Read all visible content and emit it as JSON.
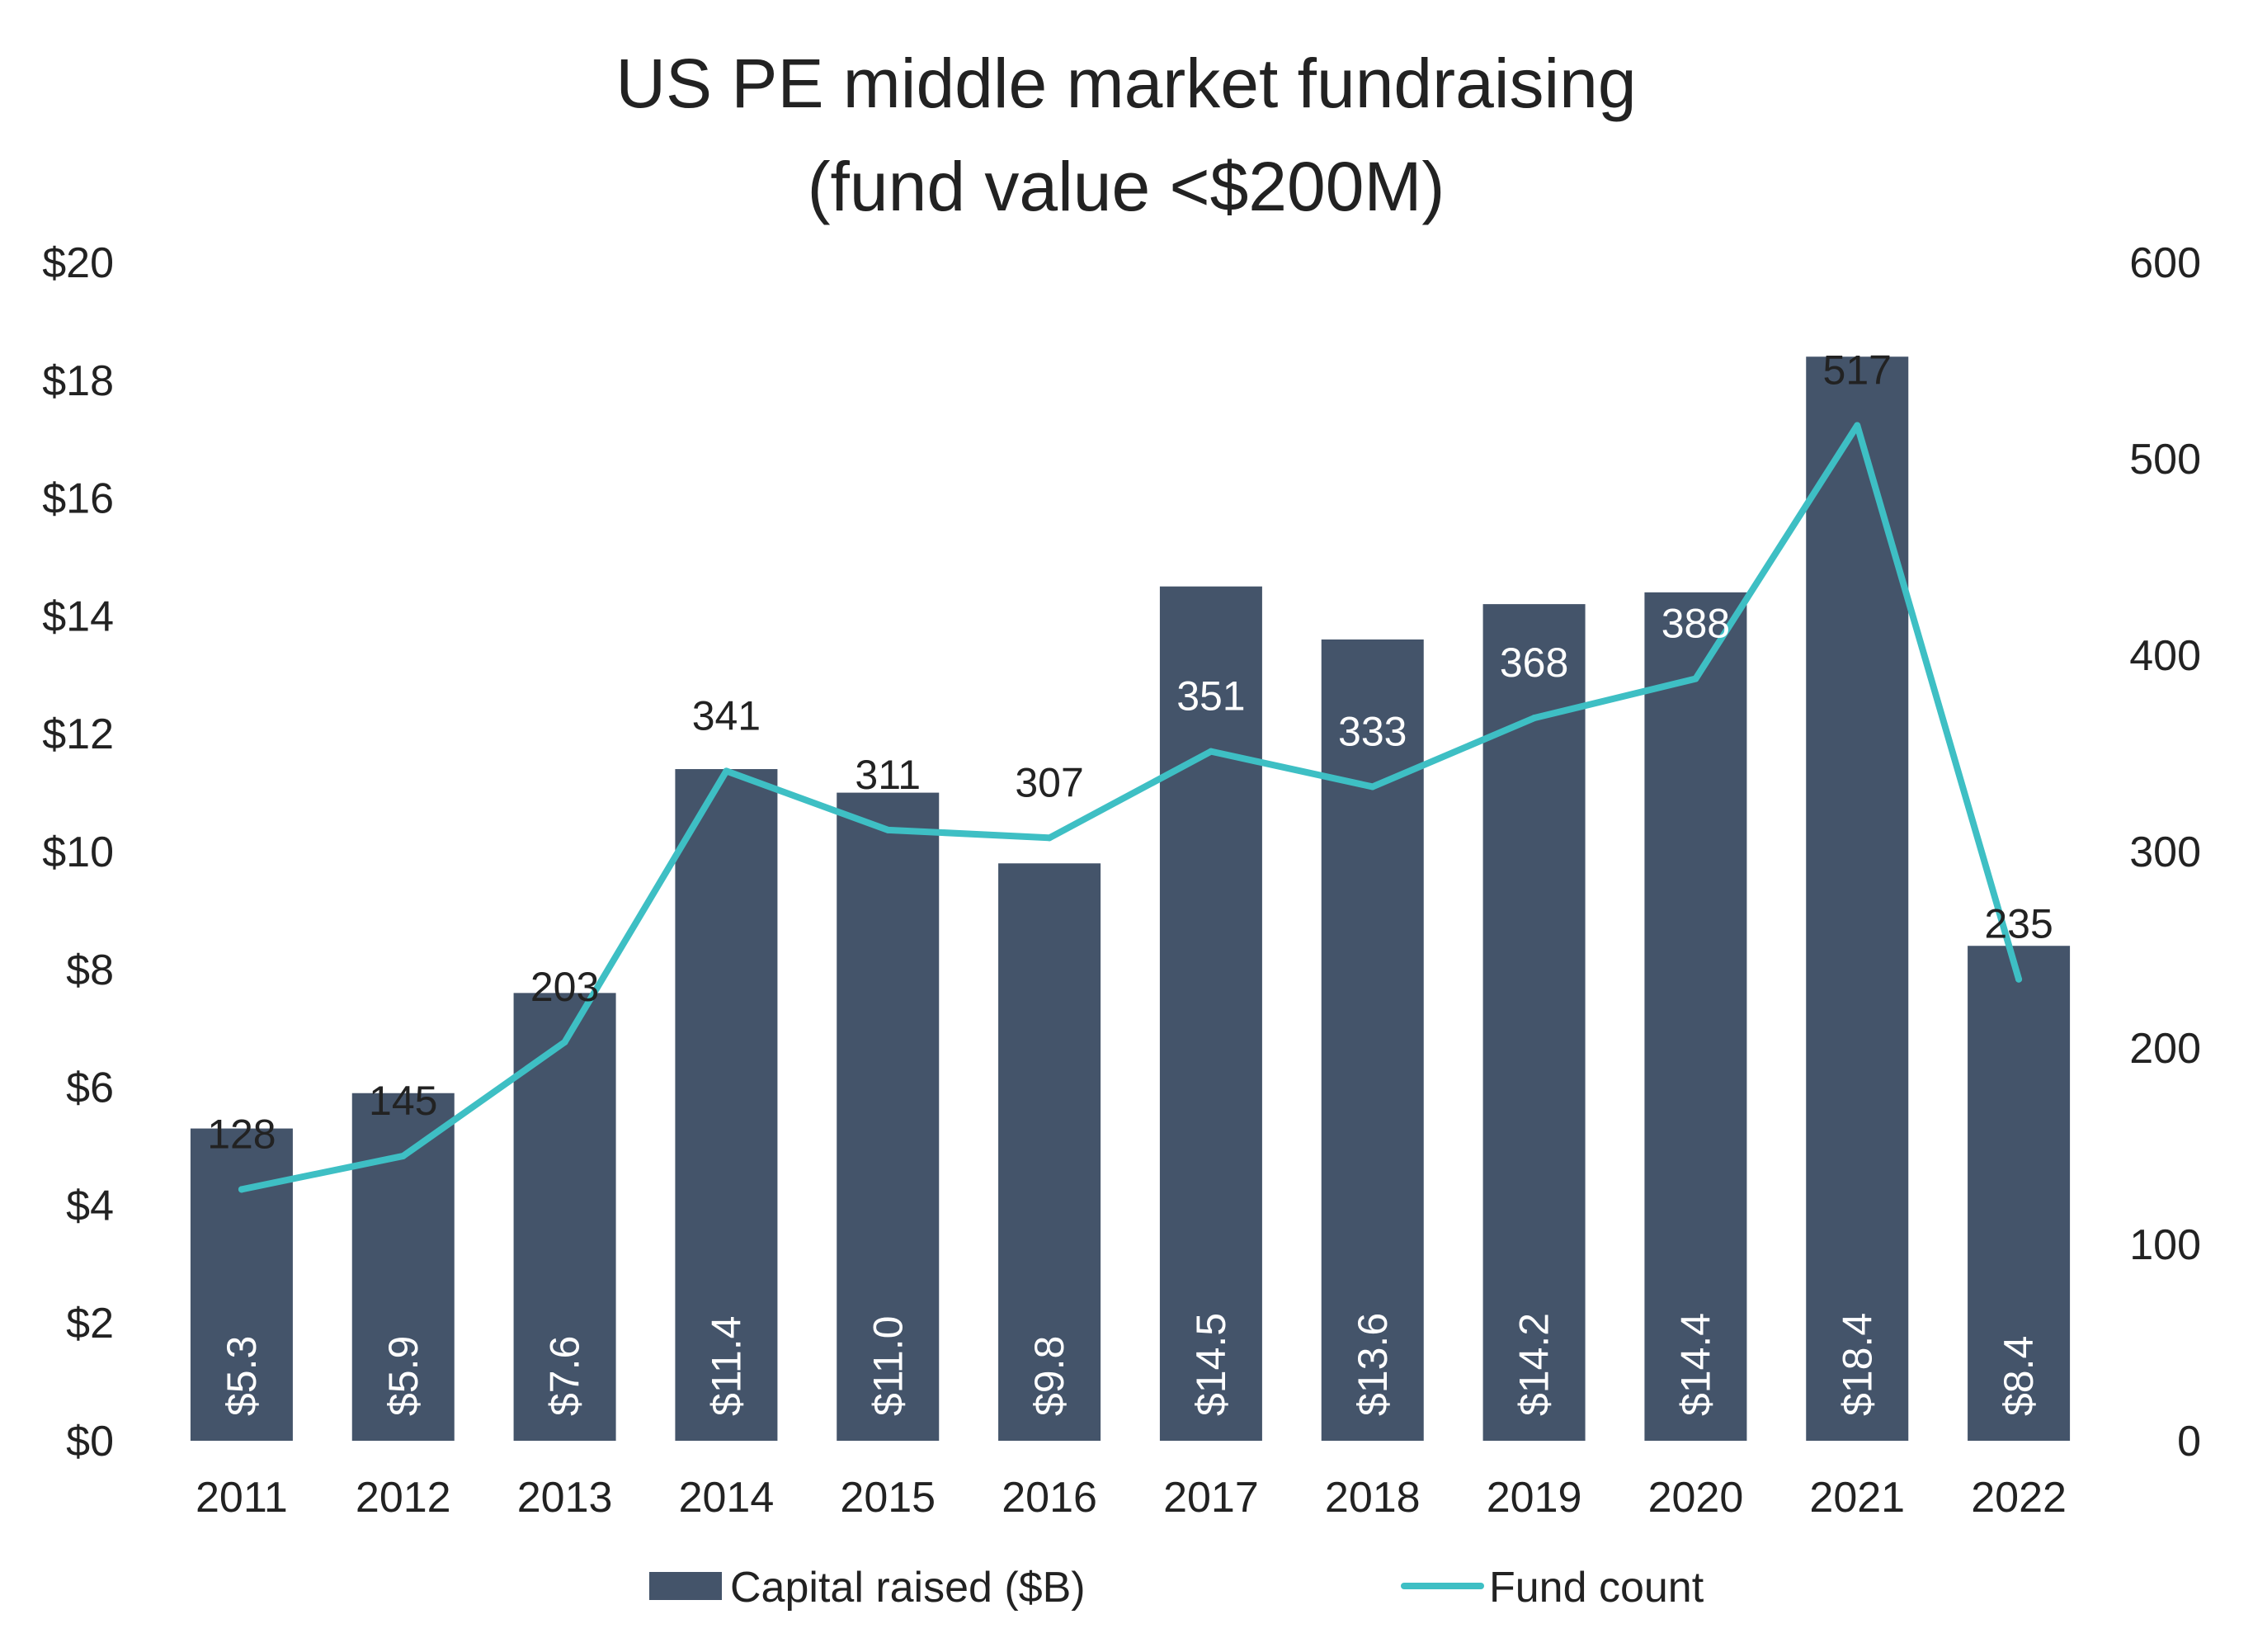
{
  "chart_data": {
    "type": "bar",
    "title": [
      "US PE middle market fundraising",
      "(fund value <$200M)"
    ],
    "categories": [
      "2011",
      "2012",
      "2013",
      "2014",
      "2015",
      "2016",
      "2017",
      "2018",
      "2019",
      "2020",
      "2021",
      "2022"
    ],
    "series": [
      {
        "name": "Capital raised ($B)",
        "type": "bar",
        "axis": "left",
        "color": "#44546a",
        "values": [
          5.3,
          5.9,
          7.6,
          11.4,
          11.0,
          9.8,
          14.5,
          13.6,
          14.2,
          14.4,
          18.4,
          8.4
        ],
        "labels": [
          "$5.3",
          "$5.9",
          "$7.6",
          "$11.4",
          "$11.0",
          "$9.8",
          "$14.5",
          "$13.6",
          "$14.2",
          "$14.4",
          "$18.4",
          "$8.4"
        ]
      },
      {
        "name": "Fund count",
        "type": "line",
        "axis": "right",
        "color": "#3ebfc4",
        "values": [
          128,
          145,
          203,
          341,
          311,
          307,
          351,
          333,
          368,
          388,
          517,
          235
        ],
        "labels": [
          "128",
          "145",
          "203",
          "341",
          "311",
          "307",
          "351",
          "333",
          "368",
          "388",
          "517",
          "235"
        ]
      }
    ],
    "y_left": {
      "lim": [
        0,
        20
      ],
      "ticks": [
        0,
        2,
        4,
        6,
        8,
        10,
        12,
        14,
        16,
        18,
        20
      ],
      "tick_labels": [
        "$0",
        "$2",
        "$4",
        "$6",
        "$8",
        "$10",
        "$12",
        "$14",
        "$16",
        "$18",
        "$20"
      ]
    },
    "y_right": {
      "lim": [
        0,
        600
      ],
      "ticks": [
        0,
        100,
        200,
        300,
        400,
        500,
        600
      ],
      "tick_labels": [
        "0",
        "100",
        "200",
        "300",
        "400",
        "500",
        "600"
      ]
    },
    "grid": false,
    "legend_position": "bottom"
  }
}
